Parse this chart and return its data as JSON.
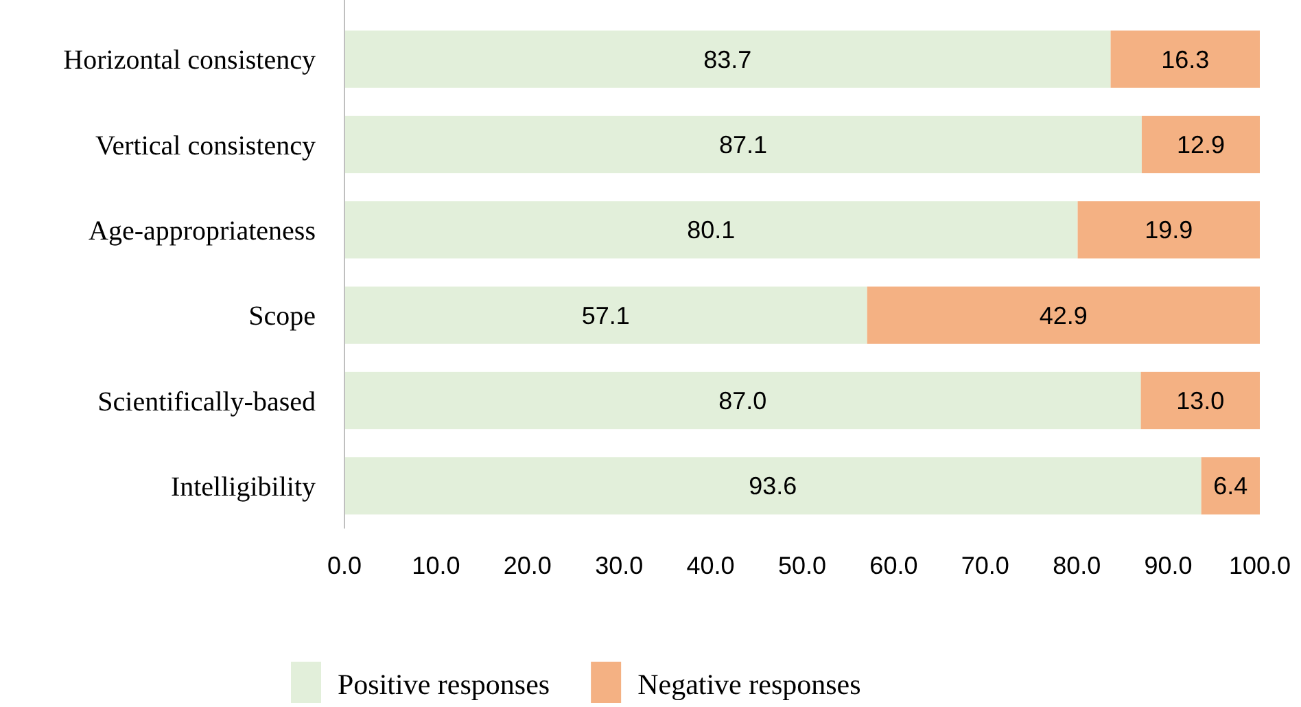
{
  "chart_data": {
    "type": "bar",
    "orientation": "horizontal",
    "stacked": true,
    "categories": [
      "Horizontal consistency",
      "Vertical consistency",
      "Age-appropriateness",
      "Scope",
      "Scientifically-based",
      "Intelligibility"
    ],
    "series": [
      {
        "name": "Positive responses",
        "color": "#e2efda",
        "values": [
          83.7,
          87.1,
          80.1,
          57.1,
          87.0,
          93.6
        ],
        "value_labels": [
          "83.7",
          "87.1",
          "80.1",
          "57.1",
          "87.0",
          "93.6"
        ]
      },
      {
        "name": "Negative responses",
        "color": "#f4b183",
        "values": [
          16.3,
          12.9,
          19.9,
          42.9,
          13.0,
          6.4
        ],
        "value_labels": [
          "16.3",
          "12.9",
          "19.9",
          "42.9",
          "13.0",
          "6.4"
        ]
      }
    ],
    "xlim": [
      0,
      100
    ],
    "xticks": [
      {
        "value": 0,
        "label": "0.0"
      },
      {
        "value": 10,
        "label": "10.0"
      },
      {
        "value": 20,
        "label": "20.0"
      },
      {
        "value": 30,
        "label": "30.0"
      },
      {
        "value": 40,
        "label": "40.0"
      },
      {
        "value": 50,
        "label": "50.0"
      },
      {
        "value": 60,
        "label": "60.0"
      },
      {
        "value": 70,
        "label": "70.0"
      },
      {
        "value": 80,
        "label": "80.0"
      },
      {
        "value": 90,
        "label": "90.0"
      },
      {
        "value": 100,
        "label": "100.0"
      }
    ],
    "grid": false,
    "legend": "bottom"
  }
}
